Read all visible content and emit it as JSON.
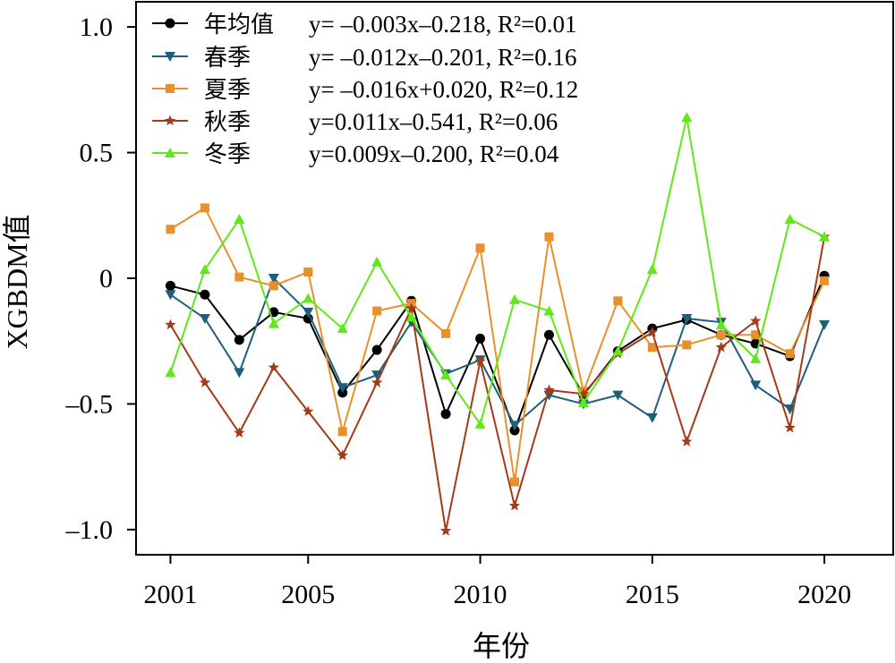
{
  "chart_data": {
    "type": "line",
    "xlabel": "年份",
    "ylabel": "XGBDM值",
    "xlim": [
      2000,
      2022
    ],
    "ylim": [
      -1.1,
      1.1
    ],
    "xticks": [
      "2001",
      "2005",
      "2010",
      "2015",
      "2020"
    ],
    "yticks": [
      "1.0",
      "0.5",
      "0",
      "–0.5",
      "–1.0"
    ],
    "grid": false,
    "legend_position": "top-left",
    "x": [
      2001,
      2002,
      2003,
      2004,
      2005,
      2006,
      2007,
      2008,
      2009,
      2010,
      2011,
      2012,
      2013,
      2014,
      2015,
      2016,
      2017,
      2018,
      2019,
      2020
    ],
    "series": [
      {
        "name": "年均值",
        "equation": "y= –0.003x–0.218, R²=0.01",
        "color": "#000000",
        "marker": "circle",
        "values": [
          -0.03,
          -0.065,
          -0.245,
          -0.135,
          -0.16,
          -0.455,
          -0.285,
          -0.09,
          -0.54,
          -0.24,
          -0.605,
          -0.225,
          -0.465,
          -0.29,
          -0.2,
          -0.165,
          -0.225,
          -0.26,
          -0.31,
          0.01
        ]
      },
      {
        "name": "春季",
        "equation": "y= –0.012x–0.201, R²=0.16",
        "color": "#1e5f7a",
        "marker": "triangle-down",
        "values": [
          -0.065,
          -0.16,
          -0.375,
          0.0,
          -0.135,
          -0.435,
          -0.385,
          -0.175,
          -0.38,
          -0.325,
          -0.585,
          -0.465,
          -0.5,
          -0.465,
          -0.555,
          -0.16,
          -0.175,
          -0.425,
          -0.52,
          -0.185
        ]
      },
      {
        "name": "夏季",
        "equation": "y= –0.016x+0.020, R²=0.12",
        "color": "#e8912b",
        "marker": "square",
        "values": [
          0.195,
          0.28,
          0.005,
          -0.03,
          0.025,
          -0.61,
          -0.13,
          -0.1,
          -0.22,
          0.12,
          -0.81,
          0.165,
          -0.45,
          -0.09,
          -0.275,
          -0.265,
          -0.225,
          -0.225,
          -0.3,
          -0.01
        ]
      },
      {
        "name": "秋季",
        "equation": "y=0.011x–0.541, R²=0.06",
        "color": "#a33a1a",
        "marker": "star",
        "values": [
          -0.185,
          -0.415,
          -0.615,
          -0.355,
          -0.53,
          -0.705,
          -0.415,
          -0.12,
          -1.005,
          -0.33,
          -0.905,
          -0.445,
          -0.46,
          -0.3,
          -0.215,
          -0.65,
          -0.275,
          -0.17,
          -0.595,
          0.165
        ]
      },
      {
        "name": "冬季",
        "equation": "y=0.009x–0.200, R²=0.04",
        "color": "#5fe81a",
        "marker": "triangle-up",
        "values": [
          -0.375,
          0.035,
          0.235,
          -0.18,
          -0.08,
          -0.2,
          0.065,
          -0.155,
          -0.385,
          -0.58,
          -0.085,
          -0.13,
          -0.495,
          -0.29,
          0.035,
          0.64,
          -0.185,
          -0.32,
          0.235,
          0.165
        ]
      }
    ]
  }
}
